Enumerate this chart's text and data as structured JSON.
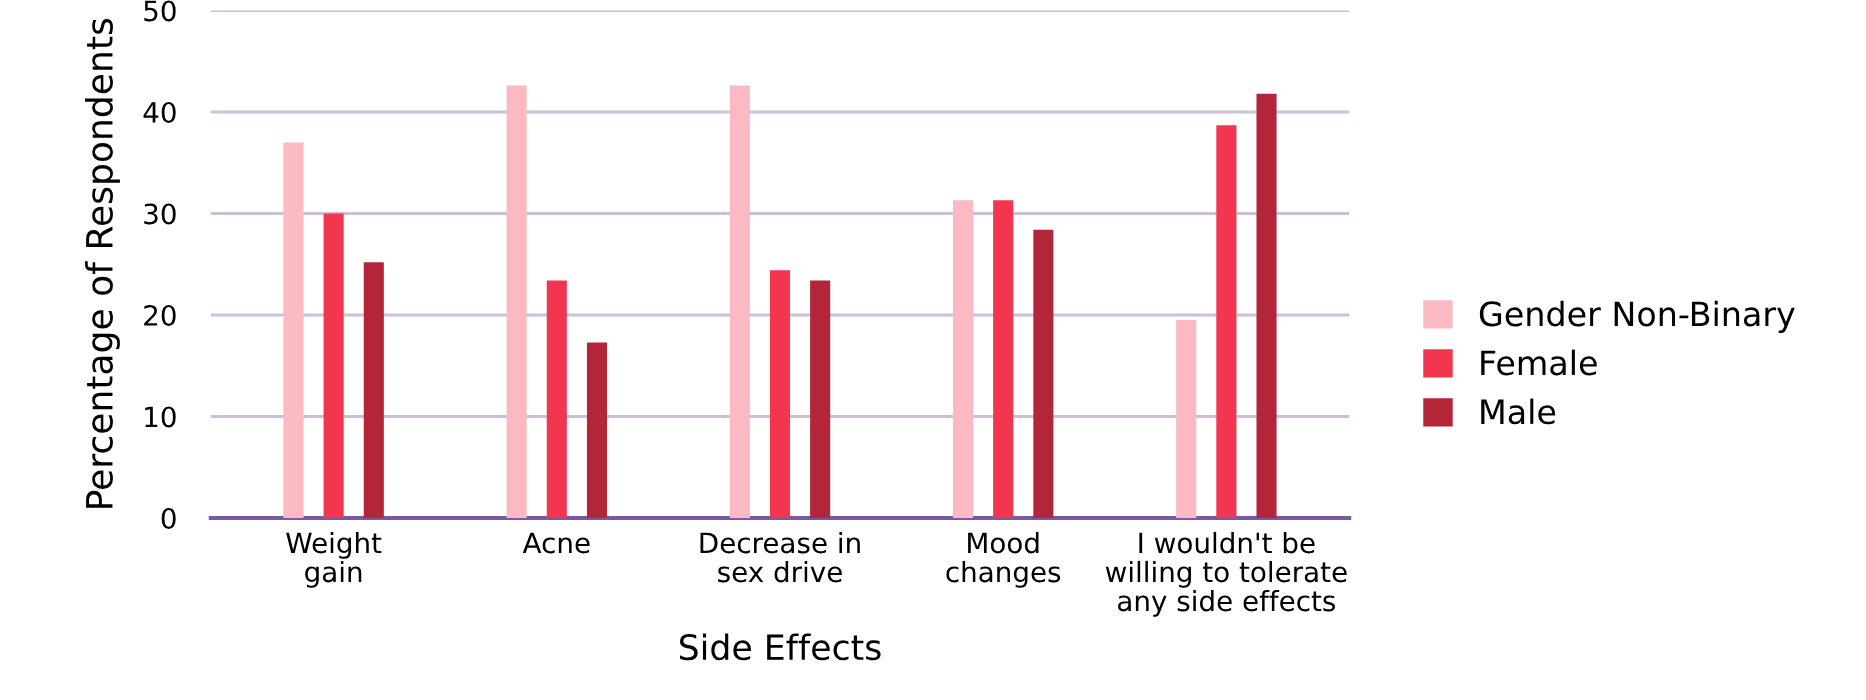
{
  "chart_data": {
    "type": "bar",
    "xlabel": "Side Effects",
    "ylabel": "Percentage of Respondents",
    "categories": [
      "Weight\ngain",
      "Acne",
      "Decrease in\nsex drive",
      "Mood\nchanges",
      "I wouldn't be\nwilling to tolerate\nany side effects"
    ],
    "series": [
      {
        "name": "Gender Non-Binary",
        "color": "#fbbac2",
        "values": [
          37,
          42.6,
          42.6,
          31.3,
          19.5
        ]
      },
      {
        "name": "Female",
        "color": "#f2364f",
        "values": [
          30,
          23.4,
          24.4,
          31.3,
          38.7
        ]
      },
      {
        "name": "Male",
        "color": "#b3263a",
        "values": [
          25.2,
          17.3,
          23.4,
          28.4,
          41.8
        ]
      }
    ],
    "ylim": [
      0,
      50
    ],
    "yticks": [
      0,
      10,
      20,
      30,
      40,
      50
    ],
    "grid": "y",
    "legend": "right"
  }
}
